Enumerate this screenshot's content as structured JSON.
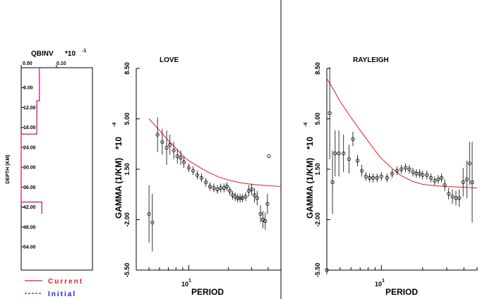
{
  "chart_data": [
    {
      "type": "line",
      "title": "QBINV",
      "multiplier": "*10",
      "multiplier_exp": "-1",
      "xlabel": "",
      "ylabel": "DEPTH (KM)",
      "x_ticks": [
        "0.00",
        "0.10"
      ],
      "y_ticks": [
        "6.00",
        "12.00",
        "18.00",
        "24.00",
        "30.00",
        "36.00",
        "42.00",
        "48.00",
        "54.00"
      ],
      "xlim": [
        0.0,
        0.2
      ],
      "ylim": [
        0,
        61
      ],
      "series": [
        {
          "name": "Current",
          "color": "#e02020",
          "x": [
            0.051,
            0.051,
            0.044,
            0.044,
            0.039,
            0.039,
            0.0,
            0.0,
            0.058,
            0.058
          ],
          "y": [
            0,
            10,
            10,
            20,
            20,
            20,
            20,
            40.5,
            40.5,
            44
          ]
        },
        {
          "name": "Initial",
          "color": "#2020d0",
          "x": [
            0.051,
            0.051,
            0.044,
            0.044,
            0.039,
            0.039,
            0.0,
            0.0,
            0.058,
            0.058
          ],
          "y": [
            0,
            10,
            10,
            20,
            20,
            20,
            20,
            40.5,
            40.5,
            44
          ]
        }
      ],
      "legend": [
        {
          "label": "Current",
          "color": "#e02020",
          "style": "solid"
        },
        {
          "label": "Initial",
          "color": "#2020d0",
          "style": "dashed"
        }
      ]
    },
    {
      "type": "scatter",
      "title": "LOVE",
      "xlabel": "PERIOD",
      "ylabel": "GAMMA (1/KM)",
      "y_multiplier": "*10",
      "y_multiplier_exp": "-4",
      "x_scale": "log",
      "x_tick_label": "10",
      "x_tick_exp": "1",
      "y_ticks": [
        "8.50",
        "5.00",
        "1.50",
        "-2.00",
        "-5.50"
      ],
      "ylim": [
        -5.5,
        8.5
      ],
      "xlim": [
        4.0,
        50.0
      ],
      "theory_line": {
        "color": "#e02020",
        "x": [
          5,
          6,
          7,
          8,
          9,
          10,
          12,
          14,
          17,
          20,
          25,
          30,
          35,
          40,
          50
        ],
        "y": [
          5.0,
          4.2,
          3.5,
          2.95,
          2.45,
          2.1,
          1.65,
          1.3,
          0.95,
          0.75,
          0.55,
          0.45,
          0.4,
          0.35,
          0.3
        ]
      },
      "points": [
        {
          "x": 5.0,
          "y": -1.6,
          "e": 2.0
        },
        {
          "x": 5.3,
          "y": -2.2,
          "e": 2.0
        },
        {
          "x": 5.8,
          "y": 3.9,
          "e": 1.2
        },
        {
          "x": 6.3,
          "y": 3.4,
          "e": 0.9
        },
        {
          "x": 6.8,
          "y": 3.0,
          "e": 1.2
        },
        {
          "x": 7.2,
          "y": 3.2,
          "e": 0.7
        },
        {
          "x": 7.7,
          "y": 2.8,
          "e": 0.6
        },
        {
          "x": 8.2,
          "y": 2.4,
          "e": 0.5
        },
        {
          "x": 8.7,
          "y": 2.3,
          "e": 0.5
        },
        {
          "x": 9.2,
          "y": 2.0,
          "e": 0.4
        },
        {
          "x": 10.0,
          "y": 1.6,
          "e": 0.3
        },
        {
          "x": 10.8,
          "y": 1.4,
          "e": 0.3
        },
        {
          "x": 11.6,
          "y": 1.1,
          "e": 0.3
        },
        {
          "x": 12.5,
          "y": 0.9,
          "e": 0.3
        },
        {
          "x": 13.5,
          "y": 0.6,
          "e": 0.3
        },
        {
          "x": 14.5,
          "y": 0.3,
          "e": 0.3
        },
        {
          "x": 15.5,
          "y": 0.2,
          "e": 0.3
        },
        {
          "x": 16.5,
          "y": 0.1,
          "e": 0.3
        },
        {
          "x": 17.5,
          "y": 0.2,
          "e": 0.3
        },
        {
          "x": 18.5,
          "y": 0.2,
          "e": 0.3
        },
        {
          "x": 19.5,
          "y": 0.3,
          "e": 0.3
        },
        {
          "x": 20.5,
          "y": 0.0,
          "e": 0.3
        },
        {
          "x": 21.5,
          "y": -0.3,
          "e": 0.3
        },
        {
          "x": 22.5,
          "y": -0.4,
          "e": 0.3
        },
        {
          "x": 23.5,
          "y": -0.5,
          "e": 0.3
        },
        {
          "x": 24.5,
          "y": -0.5,
          "e": 0.3
        },
        {
          "x": 25.5,
          "y": -0.5,
          "e": 0.3
        },
        {
          "x": 27.0,
          "y": -0.4,
          "e": 0.3
        },
        {
          "x": 28.5,
          "y": 0.0,
          "e": 0.4
        },
        {
          "x": 30.0,
          "y": 0.1,
          "e": 0.4
        },
        {
          "x": 31.5,
          "y": -0.3,
          "e": 0.5
        },
        {
          "x": 33.0,
          "y": -0.5,
          "e": 0.5
        },
        {
          "x": 35.0,
          "y": -1.6,
          "e": 0.6
        },
        {
          "x": 36.5,
          "y": -2.0,
          "e": 0.6
        },
        {
          "x": 38.0,
          "y": -2.1,
          "e": 0.6
        },
        {
          "x": 39.5,
          "y": -0.9,
          "e": 0.7
        },
        {
          "x": 40.5,
          "y": 2.4,
          "e": 0.0
        }
      ]
    },
    {
      "type": "scatter",
      "title": "RAYLEIGH",
      "xlabel": "PERIOD",
      "ylabel": "GAMMA (1/KM)",
      "y_multiplier": "*10",
      "y_multiplier_exp": "-4",
      "x_scale": "log",
      "x_tick_label": "10",
      "x_tick_exp": "1",
      "y_ticks": [
        "8.50",
        "5.00",
        "1.50",
        "-2.00",
        "-5.50"
      ],
      "ylim": [
        -5.5,
        8.5
      ],
      "xlim": [
        4.0,
        50.0
      ],
      "theory_line": {
        "color": "#e02020",
        "x": [
          4.0,
          4.5,
          5,
          6,
          7,
          8,
          9,
          10,
          12,
          14,
          17,
          20,
          25,
          30,
          40,
          50
        ],
        "y": [
          7.8,
          7.0,
          6.2,
          5.1,
          4.2,
          3.45,
          2.8,
          2.25,
          1.55,
          1.05,
          0.65,
          0.45,
          0.35,
          0.3,
          0.25,
          0.2
        ]
      },
      "points": [
        {
          "x": 4.0,
          "y": -5.5,
          "e": 0.3
        },
        {
          "x": 4.2,
          "y": 5.4,
          "e": 3.2
        },
        {
          "x": 4.4,
          "y": 0.6,
          "e": 2.2
        },
        {
          "x": 4.6,
          "y": 2.6,
          "e": 1.6
        },
        {
          "x": 4.9,
          "y": 2.6,
          "e": 1.6
        },
        {
          "x": 5.3,
          "y": 2.6,
          "e": 1.3
        },
        {
          "x": 5.8,
          "y": 2.2,
          "e": 1.0
        },
        {
          "x": 6.2,
          "y": 3.6,
          "e": 0.5
        },
        {
          "x": 6.7,
          "y": 2.1,
          "e": 0.4
        },
        {
          "x": 7.2,
          "y": 1.4,
          "e": 0.4
        },
        {
          "x": 7.7,
          "y": 1.0,
          "e": 0.3
        },
        {
          "x": 8.2,
          "y": 0.9,
          "e": 0.3
        },
        {
          "x": 8.7,
          "y": 0.9,
          "e": 0.3
        },
        {
          "x": 9.3,
          "y": 0.9,
          "e": 0.3
        },
        {
          "x": 10.0,
          "y": 1.0,
          "e": 0.3
        },
        {
          "x": 11.0,
          "y": 0.9,
          "e": 0.3
        },
        {
          "x": 12.0,
          "y": 1.2,
          "e": 0.3
        },
        {
          "x": 13.0,
          "y": 1.4,
          "e": 0.3
        },
        {
          "x": 14.0,
          "y": 1.5,
          "e": 0.3
        },
        {
          "x": 15.0,
          "y": 1.6,
          "e": 0.3
        },
        {
          "x": 16.0,
          "y": 1.5,
          "e": 0.3
        },
        {
          "x": 17.0,
          "y": 1.3,
          "e": 0.3
        },
        {
          "x": 18.0,
          "y": 1.2,
          "e": 0.3
        },
        {
          "x": 19.0,
          "y": 1.2,
          "e": 0.3
        },
        {
          "x": 20.0,
          "y": 1.1,
          "e": 0.3
        },
        {
          "x": 21.5,
          "y": 1.1,
          "e": 0.3
        },
        {
          "x": 23.0,
          "y": 0.9,
          "e": 0.3
        },
        {
          "x": 24.5,
          "y": 0.7,
          "e": 0.3
        },
        {
          "x": 26.0,
          "y": 0.8,
          "e": 0.3
        },
        {
          "x": 27.5,
          "y": 0.9,
          "e": 0.3
        },
        {
          "x": 29.0,
          "y": 0.4,
          "e": 0.4
        },
        {
          "x": 31.0,
          "y": -0.2,
          "e": 0.4
        },
        {
          "x": 33.0,
          "y": -0.4,
          "e": 0.5
        },
        {
          "x": 35.0,
          "y": -0.5,
          "e": 0.5
        },
        {
          "x": 37.0,
          "y": -0.5,
          "e": 0.6
        },
        {
          "x": 39.5,
          "y": 0.6,
          "e": 1.0
        },
        {
          "x": 42.0,
          "y": 0.8,
          "e": 1.3
        },
        {
          "x": 44.0,
          "y": 1.9,
          "e": 1.5
        },
        {
          "x": 46.0,
          "y": 0.6,
          "e": 2.8
        }
      ]
    }
  ]
}
